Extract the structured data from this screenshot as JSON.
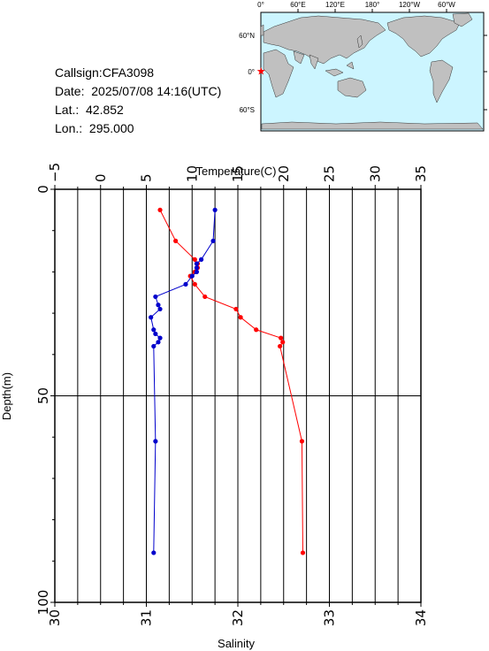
{
  "info": {
    "callsign": "Callsign:CFA3098",
    "date": "Date:  2025/07/08 14:16(UTC)",
    "lat": "Lat.:  42.852",
    "lon": "Lon.:  295.000"
  },
  "map": {
    "top_labels": [
      "0°",
      "60°E",
      "120°E",
      "180°",
      "120°W",
      "60°W"
    ],
    "left_labels": [
      "60°N",
      "0°",
      "60°S"
    ],
    "ocean_color": "#ccf5ff",
    "land_color": "#c0c0c0",
    "marker": "star-icon",
    "marker_color": "#ff0000"
  },
  "chart_data": {
    "type": "line",
    "title": "",
    "x_top": {
      "label": "Temperature(C)",
      "range": [
        -5,
        35
      ],
      "ticks": [
        "−5",
        "0",
        "5",
        "10",
        "15",
        "20",
        "25",
        "30",
        "35"
      ]
    },
    "x_bottom": {
      "label": "Salinity",
      "range": [
        30,
        34
      ],
      "ticks": [
        "30",
        "31",
        "32",
        "33",
        "34"
      ]
    },
    "y": {
      "label": "Depth(m)",
      "range": [
        0,
        100
      ],
      "inverted": true,
      "ticks": [
        "0",
        "50",
        "100"
      ]
    },
    "grid": true,
    "series": [
      {
        "name": "",
        "axis": "temperature",
        "color": "#ff0000",
        "points": [
          {
            "depth": 5,
            "value": 6.5
          },
          {
            "depth": 12.5,
            "value": 8.2
          },
          {
            "depth": 17,
            "value": 10.3
          },
          {
            "depth": 18,
            "value": 10.6
          },
          {
            "depth": 19,
            "value": 10.6
          },
          {
            "depth": 20,
            "value": 10.3
          },
          {
            "depth": 21,
            "value": 9.8
          },
          {
            "depth": 23,
            "value": 10.3
          },
          {
            "depth": 26,
            "value": 11.4
          },
          {
            "depth": 29,
            "value": 14.8
          },
          {
            "depth": 31,
            "value": 15.3
          },
          {
            "depth": 34,
            "value": 17.0
          },
          {
            "depth": 36,
            "value": 19.7
          },
          {
            "depth": 37,
            "value": 19.9
          },
          {
            "depth": 38,
            "value": 19.6
          },
          {
            "depth": 61,
            "value": 22.0
          },
          {
            "depth": 88,
            "value": 22.1
          }
        ]
      },
      {
        "name": "",
        "axis": "salinity",
        "color": "#0000cc",
        "points": [
          {
            "depth": 5,
            "value": 31.75
          },
          {
            "depth": 12.5,
            "value": 31.73
          },
          {
            "depth": 17,
            "value": 31.6
          },
          {
            "depth": 18,
            "value": 31.55
          },
          {
            "depth": 19,
            "value": 31.55
          },
          {
            "depth": 20,
            "value": 31.55
          },
          {
            "depth": 21,
            "value": 31.5
          },
          {
            "depth": 23,
            "value": 31.43
          },
          {
            "depth": 26,
            "value": 31.1
          },
          {
            "depth": 28,
            "value": 31.13
          },
          {
            "depth": 29,
            "value": 31.15
          },
          {
            "depth": 31,
            "value": 31.05
          },
          {
            "depth": 34,
            "value": 31.08
          },
          {
            "depth": 35,
            "value": 31.1
          },
          {
            "depth": 36,
            "value": 31.15
          },
          {
            "depth": 37,
            "value": 31.13
          },
          {
            "depth": 38,
            "value": 31.08
          },
          {
            "depth": 61,
            "value": 31.1
          },
          {
            "depth": 88,
            "value": 31.08
          }
        ]
      }
    ]
  }
}
